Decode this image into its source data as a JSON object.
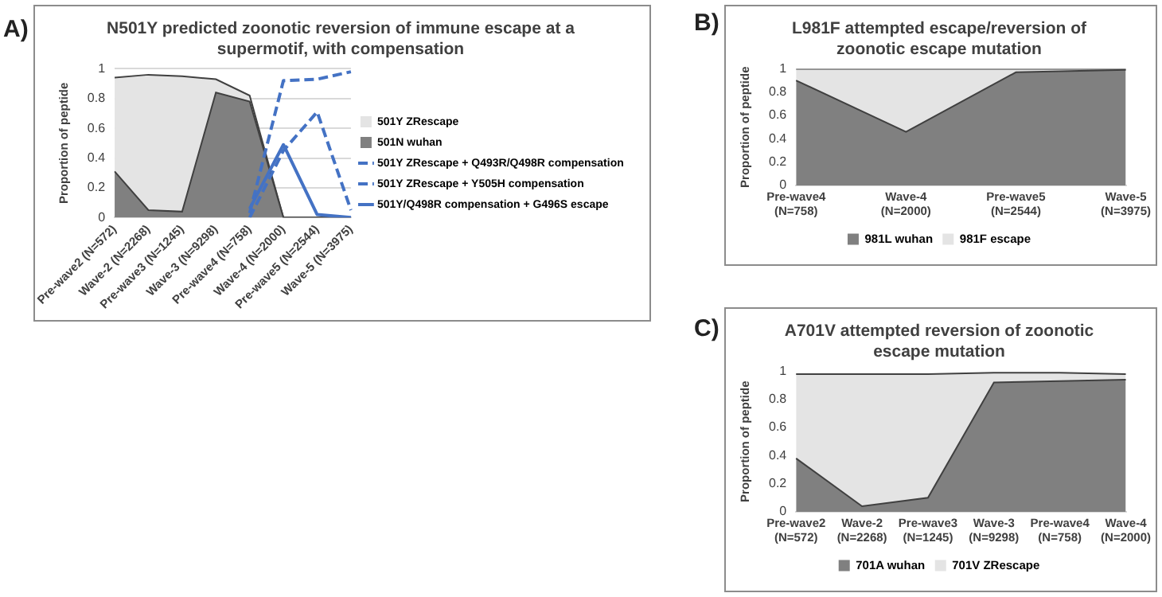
{
  "chart_data": [
    {
      "type": "area",
      "title": "N501Y predicted zoonotic reversion of immune escape at a supermotif, with compensation",
      "ylabel": "Proportion of peptide",
      "annotations": [
        "A)"
      ],
      "categories": [
        "Pre-wave2 (N=572)",
        "Wave-2 (N=2268)",
        "Pre-wave3 (N=1245)",
        "Wave-3 (N=9298)",
        "Pre-wave4 (N=758)",
        "Wave-4 (N=2000)",
        "Pre-wave5 (N=2544)",
        "Wave-5 (N=3975)"
      ],
      "series": [
        {
          "name": "501Y ZRescape",
          "color": "#e4e4e4",
          "values": [
            0.94,
            0.96,
            0.95,
            0.93,
            0.82,
            0,
            0,
            0
          ]
        },
        {
          "name": "501N wuhan",
          "color": "#808080",
          "values": [
            0.31,
            0.05,
            0.04,
            0.84,
            0.78,
            0,
            0,
            0
          ]
        },
        {
          "name": "501Y ZRescape + Q493R/Q498R compensation",
          "type": "line",
          "line_style": "dashed",
          "color": "#4472c4",
          "values": [
            null,
            null,
            null,
            null,
            0,
            0.45,
            0.71,
            0.05
          ]
        },
        {
          "name": "501Y ZRescape + Y505H compensation",
          "type": "line",
          "line_style": "dashed",
          "color": "#4472c4",
          "values": [
            null,
            null,
            null,
            null,
            0.03,
            0.92,
            0.93,
            0.98
          ]
        },
        {
          "name": "501Y/Q498R compensation + G496S escape",
          "type": "line",
          "line_style": "solid",
          "color": "#4472c4",
          "values": [
            null,
            null,
            null,
            null,
            0.06,
            0.49,
            0.02,
            0
          ]
        }
      ],
      "ylim": [
        0,
        1
      ],
      "yticks": [
        0,
        0.2,
        0.4,
        0.6,
        0.8,
        1
      ],
      "grid": "y",
      "legend": "right",
      "marker": "none"
    },
    {
      "type": "area",
      "stacked": true,
      "title": "L981F attempted escape/reversion of zoonotic escape mutation",
      "ylabel": "Proportion of peptide",
      "annotations": [
        "B)"
      ],
      "categories": [
        "Pre-wave4 (N=758)",
        "Wave-4 (N=2000)",
        "Pre-wave5 (N=2544)",
        "Wave-5 (N=3975)"
      ],
      "series": [
        {
          "name": "981L wuhan",
          "color": "#808080",
          "values": [
            0.9,
            0.46,
            0.97,
            0.99
          ]
        },
        {
          "name": "981F escape",
          "color": "#e4e4e4",
          "values": [
            0.1,
            0.54,
            0.03,
            0.01
          ]
        }
      ],
      "ylim": [
        0,
        1
      ],
      "yticks": [
        0,
        0.2,
        0.4,
        0.6,
        0.8,
        1
      ],
      "legend": "bottom",
      "marker": "none"
    },
    {
      "type": "area",
      "stacked": true,
      "title": "A701V attempted reversion of zoonotic escape mutation",
      "ylabel": "Proportion of peptide",
      "annotations": [
        "C)"
      ],
      "categories": [
        "Pre-wave2 (N=572)",
        "Wave-2 (N=2268)",
        "Pre-wave3 (N=1245)",
        "Wave-3 (N=9298)",
        "Pre-wave4 (N=758)",
        "Wave-4 (N=2000)"
      ],
      "series": [
        {
          "name": "701A wuhan",
          "color": "#808080",
          "values": [
            0.38,
            0.04,
            0.1,
            0.92,
            0.93,
            0.94
          ]
        },
        {
          "name": "701V ZRescape",
          "color": "#e4e4e4",
          "values": [
            0.6,
            0.94,
            0.88,
            0.07,
            0.06,
            0.04
          ]
        }
      ],
      "ylim": [
        0,
        1
      ],
      "yticks": [
        0,
        0.2,
        0.4,
        0.6,
        0.8,
        1
      ],
      "legend": "bottom",
      "marker": "none"
    }
  ]
}
